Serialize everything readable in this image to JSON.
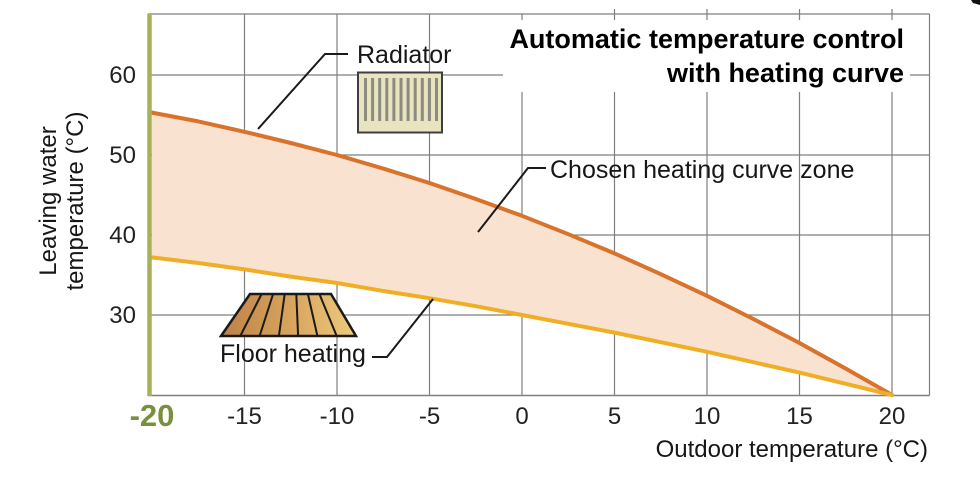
{
  "figure": {
    "title_line1": "Automatic temperature control",
    "title_line2": "with heating curve"
  },
  "annotations": {
    "radiator_label": "Radiator",
    "zone_label": "Chosen heating curve zone",
    "floor_heating_label": "Floor heating"
  },
  "axes": {
    "x_label": "Outdoor temperature (°C)",
    "y_label_line1": "Leaving water",
    "y_label_line2": "temperature (°C)",
    "x_ticks": [
      -20,
      -15,
      -10,
      -5,
      0,
      5,
      10,
      15,
      20
    ],
    "y_ticks": [
      60,
      50,
      40,
      30
    ],
    "highlight_tick": -20
  },
  "colors": {
    "radiator_curve": "#d9722a",
    "floor_curve": "#f0ae26",
    "zone_fill": "#f9e2cf",
    "grid": "#7f7f7f",
    "design_temp_axis": "#a9b156",
    "design_temp_label": "#76903c",
    "text": "#161616"
  },
  "chart_data": {
    "type": "area",
    "title": "Automatic temperature control with heating curve",
    "xlabel": "Outdoor temperature (°C)",
    "ylabel": "Leaving water temperature (°C)",
    "xlim": [
      -20,
      20
    ],
    "ylim": [
      20,
      60
    ],
    "grid": true,
    "legend_position": "inline-callouts",
    "x": [
      -20,
      -17.5,
      -15,
      -12.5,
      -10,
      -7.5,
      -5,
      -2.5,
      0,
      2.5,
      5,
      7.5,
      10,
      12.5,
      15,
      17.5,
      20
    ],
    "series": [
      {
        "name": "Radiator (upper heating curve)",
        "color": "#d9722a",
        "values": [
          55.3,
          54.2,
          52.9,
          51.5,
          50.0,
          48.3,
          46.5,
          44.5,
          42.4,
          40.1,
          37.7,
          35.1,
          32.4,
          29.5,
          26.5,
          23.3,
          20.0
        ]
      },
      {
        "name": "Floor heating (lower heating curve)",
        "color": "#f0ae26",
        "values": [
          37.2,
          36.5,
          35.7,
          34.8,
          34.0,
          33.0,
          32.1,
          31.1,
          30.0,
          28.9,
          27.8,
          26.6,
          25.4,
          24.1,
          22.8,
          21.4,
          20.0
        ]
      }
    ],
    "zone_between_series": "Chosen heating curve zone",
    "curves_converge_at": {
      "x": 20,
      "y": 20
    }
  }
}
